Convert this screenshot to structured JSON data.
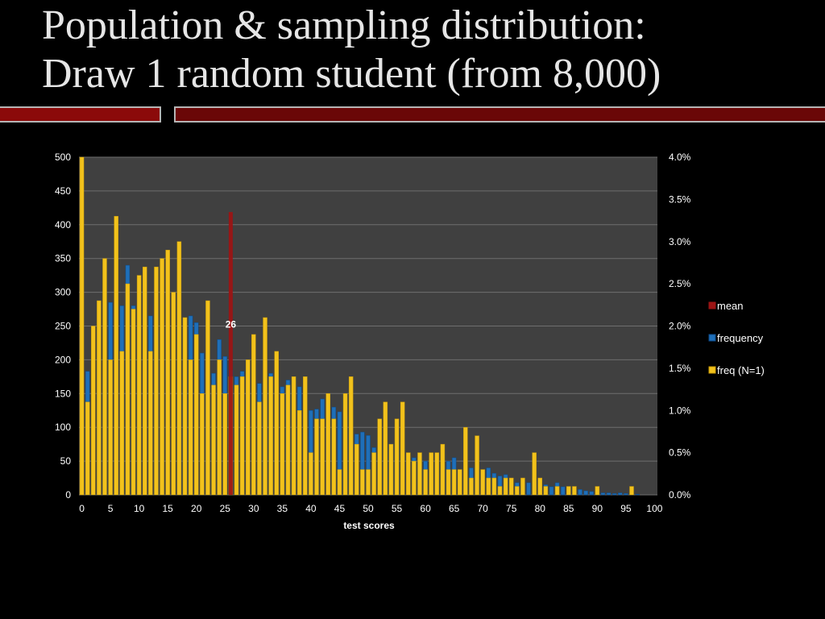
{
  "slide": {
    "title_line1": "Population & sampling distribution:",
    "title_line2": "Draw 1 random student (from 8,000)"
  },
  "colors": {
    "background": "#000000",
    "plot_area": "#404040",
    "gridline": "#6e6e6e",
    "frequency_fill": "#1f6fb8",
    "frequency_edge": "#0d4a88",
    "freq_n1_fill": "#f2c21c",
    "freq_n1_edge": "#c89a08",
    "mean_fill": "#9b1414"
  },
  "chart_data": {
    "type": "bar",
    "xlabel": "test scores",
    "x": [
      0,
      1,
      2,
      3,
      4,
      5,
      6,
      7,
      8,
      9,
      10,
      11,
      12,
      13,
      14,
      15,
      16,
      17,
      18,
      19,
      20,
      21,
      22,
      23,
      24,
      25,
      26,
      27,
      28,
      29,
      30,
      31,
      32,
      33,
      34,
      35,
      36,
      37,
      38,
      39,
      40,
      41,
      42,
      43,
      44,
      45,
      46,
      47,
      48,
      49,
      50,
      51,
      52,
      53,
      54,
      55,
      56,
      57,
      58,
      59,
      60,
      61,
      62,
      63,
      64,
      65,
      66,
      67,
      68,
      69,
      70,
      71,
      72,
      73,
      74,
      75,
      76,
      77,
      78,
      79,
      80,
      81,
      82,
      83,
      84,
      85,
      86,
      87,
      88,
      89,
      90,
      91,
      92,
      93,
      94,
      95,
      96,
      97,
      98,
      99,
      100
    ],
    "x_ticks": [
      0,
      5,
      10,
      15,
      20,
      25,
      30,
      35,
      40,
      45,
      50,
      55,
      60,
      65,
      70,
      75,
      80,
      85,
      90,
      95,
      100
    ],
    "y_left_ticks": [
      0,
      50,
      100,
      150,
      200,
      250,
      300,
      350,
      400,
      450,
      500
    ],
    "y_left_range": [
      0,
      500
    ],
    "y_right_ticks": [
      "0.0%",
      "0.5%",
      "1.0%",
      "1.5%",
      "2.0%",
      "2.5%",
      "3.0%",
      "3.5%",
      "4.0%"
    ],
    "y_right_range": [
      0.0,
      4.0
    ],
    "grid": true,
    "legend_position": "right",
    "legend": [
      "mean",
      "frequency",
      "freq (N=1)"
    ],
    "mean": {
      "x": 26,
      "label": "26",
      "height_percent": 3.35
    },
    "series": [
      {
        "name": "frequency",
        "axis": "left",
        "values": [
          0,
          183,
          150,
          150,
          175,
          285,
          280,
          280,
          340,
          280,
          175,
          250,
          265,
          240,
          190,
          200,
          180,
          170,
          170,
          265,
          255,
          210,
          150,
          180,
          230,
          205,
          185,
          175,
          183,
          160,
          150,
          165,
          150,
          180,
          170,
          160,
          170,
          175,
          160,
          175,
          125,
          127,
          142,
          118,
          130,
          123,
          115,
          97,
          90,
          93,
          88,
          70,
          75,
          80,
          75,
          80,
          68,
          62,
          55,
          60,
          50,
          50,
          48,
          45,
          50,
          55,
          37,
          25,
          40,
          42,
          30,
          40,
          32,
          28,
          30,
          22,
          18,
          20,
          18,
          25,
          20,
          15,
          12,
          18,
          12,
          10,
          8,
          8,
          6,
          5,
          4,
          3,
          3,
          2,
          3,
          2,
          1,
          1,
          0,
          0,
          0
        ],
        "unit": "count"
      },
      {
        "name": "freq (N=1)",
        "axis": "right",
        "values": [
          4.0,
          1.1,
          2.0,
          2.3,
          2.8,
          1.6,
          3.3,
          1.7,
          2.5,
          2.2,
          2.6,
          2.7,
          1.7,
          2.7,
          2.8,
          2.9,
          2.4,
          3.0,
          2.1,
          1.6,
          1.9,
          1.2,
          2.3,
          1.3,
          1.6,
          1.2,
          1.4,
          1.3,
          1.4,
          1.6,
          1.9,
          1.1,
          2.1,
          1.4,
          1.7,
          1.2,
          1.3,
          1.4,
          1.0,
          1.4,
          0.5,
          0.9,
          0.9,
          1.2,
          0.9,
          0.3,
          1.2,
          1.4,
          0.6,
          0.3,
          0.3,
          0.5,
          0.9,
          1.1,
          0.6,
          0.9,
          1.1,
          0.5,
          0.4,
          0.5,
          0.3,
          0.5,
          0.5,
          0.6,
          0.3,
          0.3,
          0.3,
          0.8,
          0.2,
          0.7,
          0.3,
          0.2,
          0.2,
          0.1,
          0.2,
          0.2,
          0.1,
          0.2,
          0.0,
          0.5,
          0.2,
          0.1,
          0.0,
          0.1,
          0.0,
          0.1,
          0.1,
          0.0,
          0.0,
          0.0,
          0.1,
          0.0,
          0.0,
          0.0,
          0.0,
          0.0,
          0.1,
          0.0,
          0.0,
          0.0,
          0.0
        ],
        "unit": "percent"
      }
    ]
  }
}
